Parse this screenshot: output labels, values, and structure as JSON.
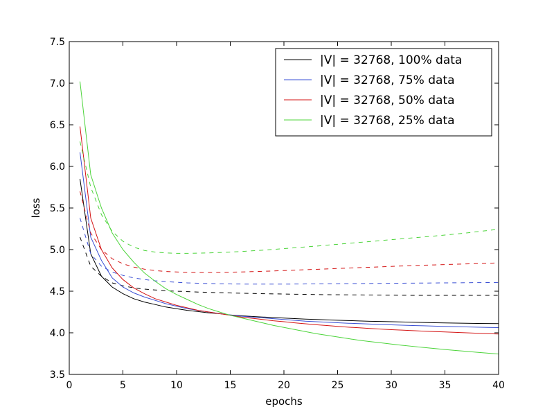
{
  "chart_data": {
    "type": "line",
    "xlabel": "epochs",
    "ylabel": "loss",
    "xlim": [
      0,
      40
    ],
    "ylim": [
      3.5,
      7.5
    ],
    "xticks": [
      0,
      5,
      10,
      15,
      20,
      25,
      30,
      35,
      40
    ],
    "yticks": [
      3.5,
      4.0,
      4.5,
      5.0,
      5.5,
      6.0,
      6.5,
      7.0,
      7.5
    ],
    "xtick_labels": [
      "0",
      "5",
      "10",
      "15",
      "20",
      "25",
      "30",
      "35",
      "40"
    ],
    "ytick_labels": [
      "3.5",
      "4.0",
      "4.5",
      "5.0",
      "5.5",
      "6.0",
      "6.5",
      "7.0",
      "7.5"
    ],
    "grid": false,
    "legend_position": "top-right",
    "x": [
      1,
      2,
      3,
      4,
      5,
      6,
      7,
      8,
      9,
      10,
      11,
      12,
      13,
      14,
      15,
      16,
      17,
      18,
      19,
      20,
      21,
      22,
      23,
      24,
      25,
      26,
      27,
      28,
      29,
      30,
      31,
      32,
      33,
      34,
      35,
      36,
      37,
      38,
      39,
      40
    ],
    "series": [
      {
        "name": "|V| = 32768, 100% data",
        "color": "#000000",
        "style": "solid",
        "values": [
          5.85,
          4.95,
          4.68,
          4.55,
          4.47,
          4.41,
          4.37,
          4.34,
          4.31,
          4.29,
          4.27,
          4.255,
          4.24,
          4.23,
          4.215,
          4.205,
          4.197,
          4.19,
          4.183,
          4.177,
          4.171,
          4.165,
          4.16,
          4.155,
          4.151,
          4.147,
          4.143,
          4.139,
          4.136,
          4.133,
          4.13,
          4.127,
          4.124,
          4.121,
          4.119,
          4.117,
          4.115,
          4.113,
          4.111,
          4.11
        ]
      },
      {
        "name": "|V| = 32768, 100% data (dashed)",
        "color": "#000000",
        "style": "dashed",
        "values": [
          5.15,
          4.8,
          4.68,
          4.6,
          4.565,
          4.54,
          4.525,
          4.515,
          4.505,
          4.5,
          4.495,
          4.49,
          4.486,
          4.482,
          4.479,
          4.476,
          4.473,
          4.47,
          4.468,
          4.466,
          4.464,
          4.462,
          4.46,
          4.458,
          4.457,
          4.456,
          4.455,
          4.454,
          4.453,
          4.452,
          4.451,
          4.45,
          4.45,
          4.45,
          4.45,
          4.45,
          4.45,
          4.45,
          4.45,
          4.45
        ]
      },
      {
        "name": "|V| = 32768, 75% data",
        "color": "#3a4fd4",
        "style": "solid",
        "values": [
          6.17,
          5.15,
          4.87,
          4.66,
          4.55,
          4.48,
          4.43,
          4.39,
          4.35,
          4.32,
          4.29,
          4.27,
          4.25,
          4.23,
          4.215,
          4.2,
          4.19,
          4.18,
          4.17,
          4.16,
          4.15,
          4.14,
          4.133,
          4.127,
          4.121,
          4.115,
          4.11,
          4.105,
          4.1,
          4.096,
          4.092,
          4.088,
          4.084,
          4.08,
          4.077,
          4.074,
          4.071,
          4.068,
          4.065,
          4.062
        ]
      },
      {
        "name": "|V| = 32768, 75% data (dashed)",
        "color": "#3a4fd4",
        "style": "dashed",
        "values": [
          5.38,
          4.95,
          4.8,
          4.73,
          4.69,
          4.66,
          4.64,
          4.625,
          4.615,
          4.607,
          4.6,
          4.596,
          4.592,
          4.589,
          4.587,
          4.586,
          4.585,
          4.585,
          4.585,
          4.585,
          4.586,
          4.587,
          4.588,
          4.589,
          4.59,
          4.591,
          4.592,
          4.593,
          4.594,
          4.595,
          4.596,
          4.597,
          4.598,
          4.599,
          4.6,
          4.601,
          4.602,
          4.603,
          4.604,
          4.605
        ]
      },
      {
        "name": "|V| = 32768, 50% data",
        "color": "#d41414",
        "style": "solid",
        "values": [
          6.48,
          5.38,
          5.0,
          4.78,
          4.64,
          4.54,
          4.47,
          4.41,
          4.37,
          4.33,
          4.3,
          4.27,
          4.25,
          4.23,
          4.21,
          4.19,
          4.175,
          4.16,
          4.145,
          4.133,
          4.12,
          4.108,
          4.097,
          4.087,
          4.077,
          4.068,
          4.06,
          4.052,
          4.045,
          4.038,
          4.032,
          4.026,
          4.02,
          4.015,
          4.01,
          4.005,
          4.0,
          3.995,
          3.99,
          3.985
        ]
      },
      {
        "name": "|V| = 32768, 50% data (dashed)",
        "color": "#d41414",
        "style": "dashed",
        "values": [
          5.7,
          5.2,
          5.0,
          4.89,
          4.83,
          4.79,
          4.765,
          4.748,
          4.737,
          4.731,
          4.727,
          4.725,
          4.725,
          4.726,
          4.728,
          4.731,
          4.735,
          4.739,
          4.743,
          4.748,
          4.753,
          4.758,
          4.763,
          4.768,
          4.773,
          4.778,
          4.783,
          4.788,
          4.793,
          4.798,
          4.803,
          4.808,
          4.812,
          4.816,
          4.82,
          4.824,
          4.828,
          4.832,
          4.836,
          4.84
        ]
      },
      {
        "name": "|V| = 32768, 25% data",
        "color": "#4cd43a",
        "style": "solid",
        "values": [
          7.02,
          5.9,
          5.5,
          5.2,
          5.0,
          4.85,
          4.72,
          4.62,
          4.53,
          4.46,
          4.4,
          4.34,
          4.29,
          4.25,
          4.21,
          4.18,
          4.15,
          4.12,
          4.09,
          4.065,
          4.04,
          4.015,
          3.99,
          3.97,
          3.95,
          3.93,
          3.91,
          3.895,
          3.88,
          3.865,
          3.85,
          3.837,
          3.824,
          3.811,
          3.799,
          3.788,
          3.777,
          3.766,
          3.755,
          3.745
        ]
      },
      {
        "name": "|V| = 32768, 25% data (dashed)",
        "color": "#4cd43a",
        "style": "dashed",
        "values": [
          6.3,
          5.75,
          5.42,
          5.22,
          5.1,
          5.03,
          4.99,
          4.97,
          4.96,
          4.955,
          4.955,
          4.957,
          4.96,
          4.965,
          4.97,
          4.977,
          4.985,
          4.993,
          5.002,
          5.012,
          5.022,
          5.032,
          5.042,
          5.053,
          5.064,
          5.075,
          5.086,
          5.097,
          5.108,
          5.119,
          5.13,
          5.141,
          5.152,
          5.163,
          5.175,
          5.187,
          5.2,
          5.215,
          5.23,
          5.245
        ]
      }
    ],
    "legend": [
      {
        "label": "|V| = 32768, 100% data",
        "color": "#000000"
      },
      {
        "label": "|V| = 32768, 75% data",
        "color": "#3a4fd4"
      },
      {
        "label": "|V| = 32768, 50% data",
        "color": "#d41414"
      },
      {
        "label": "|V| = 32768, 25% data",
        "color": "#4cd43a"
      }
    ]
  }
}
